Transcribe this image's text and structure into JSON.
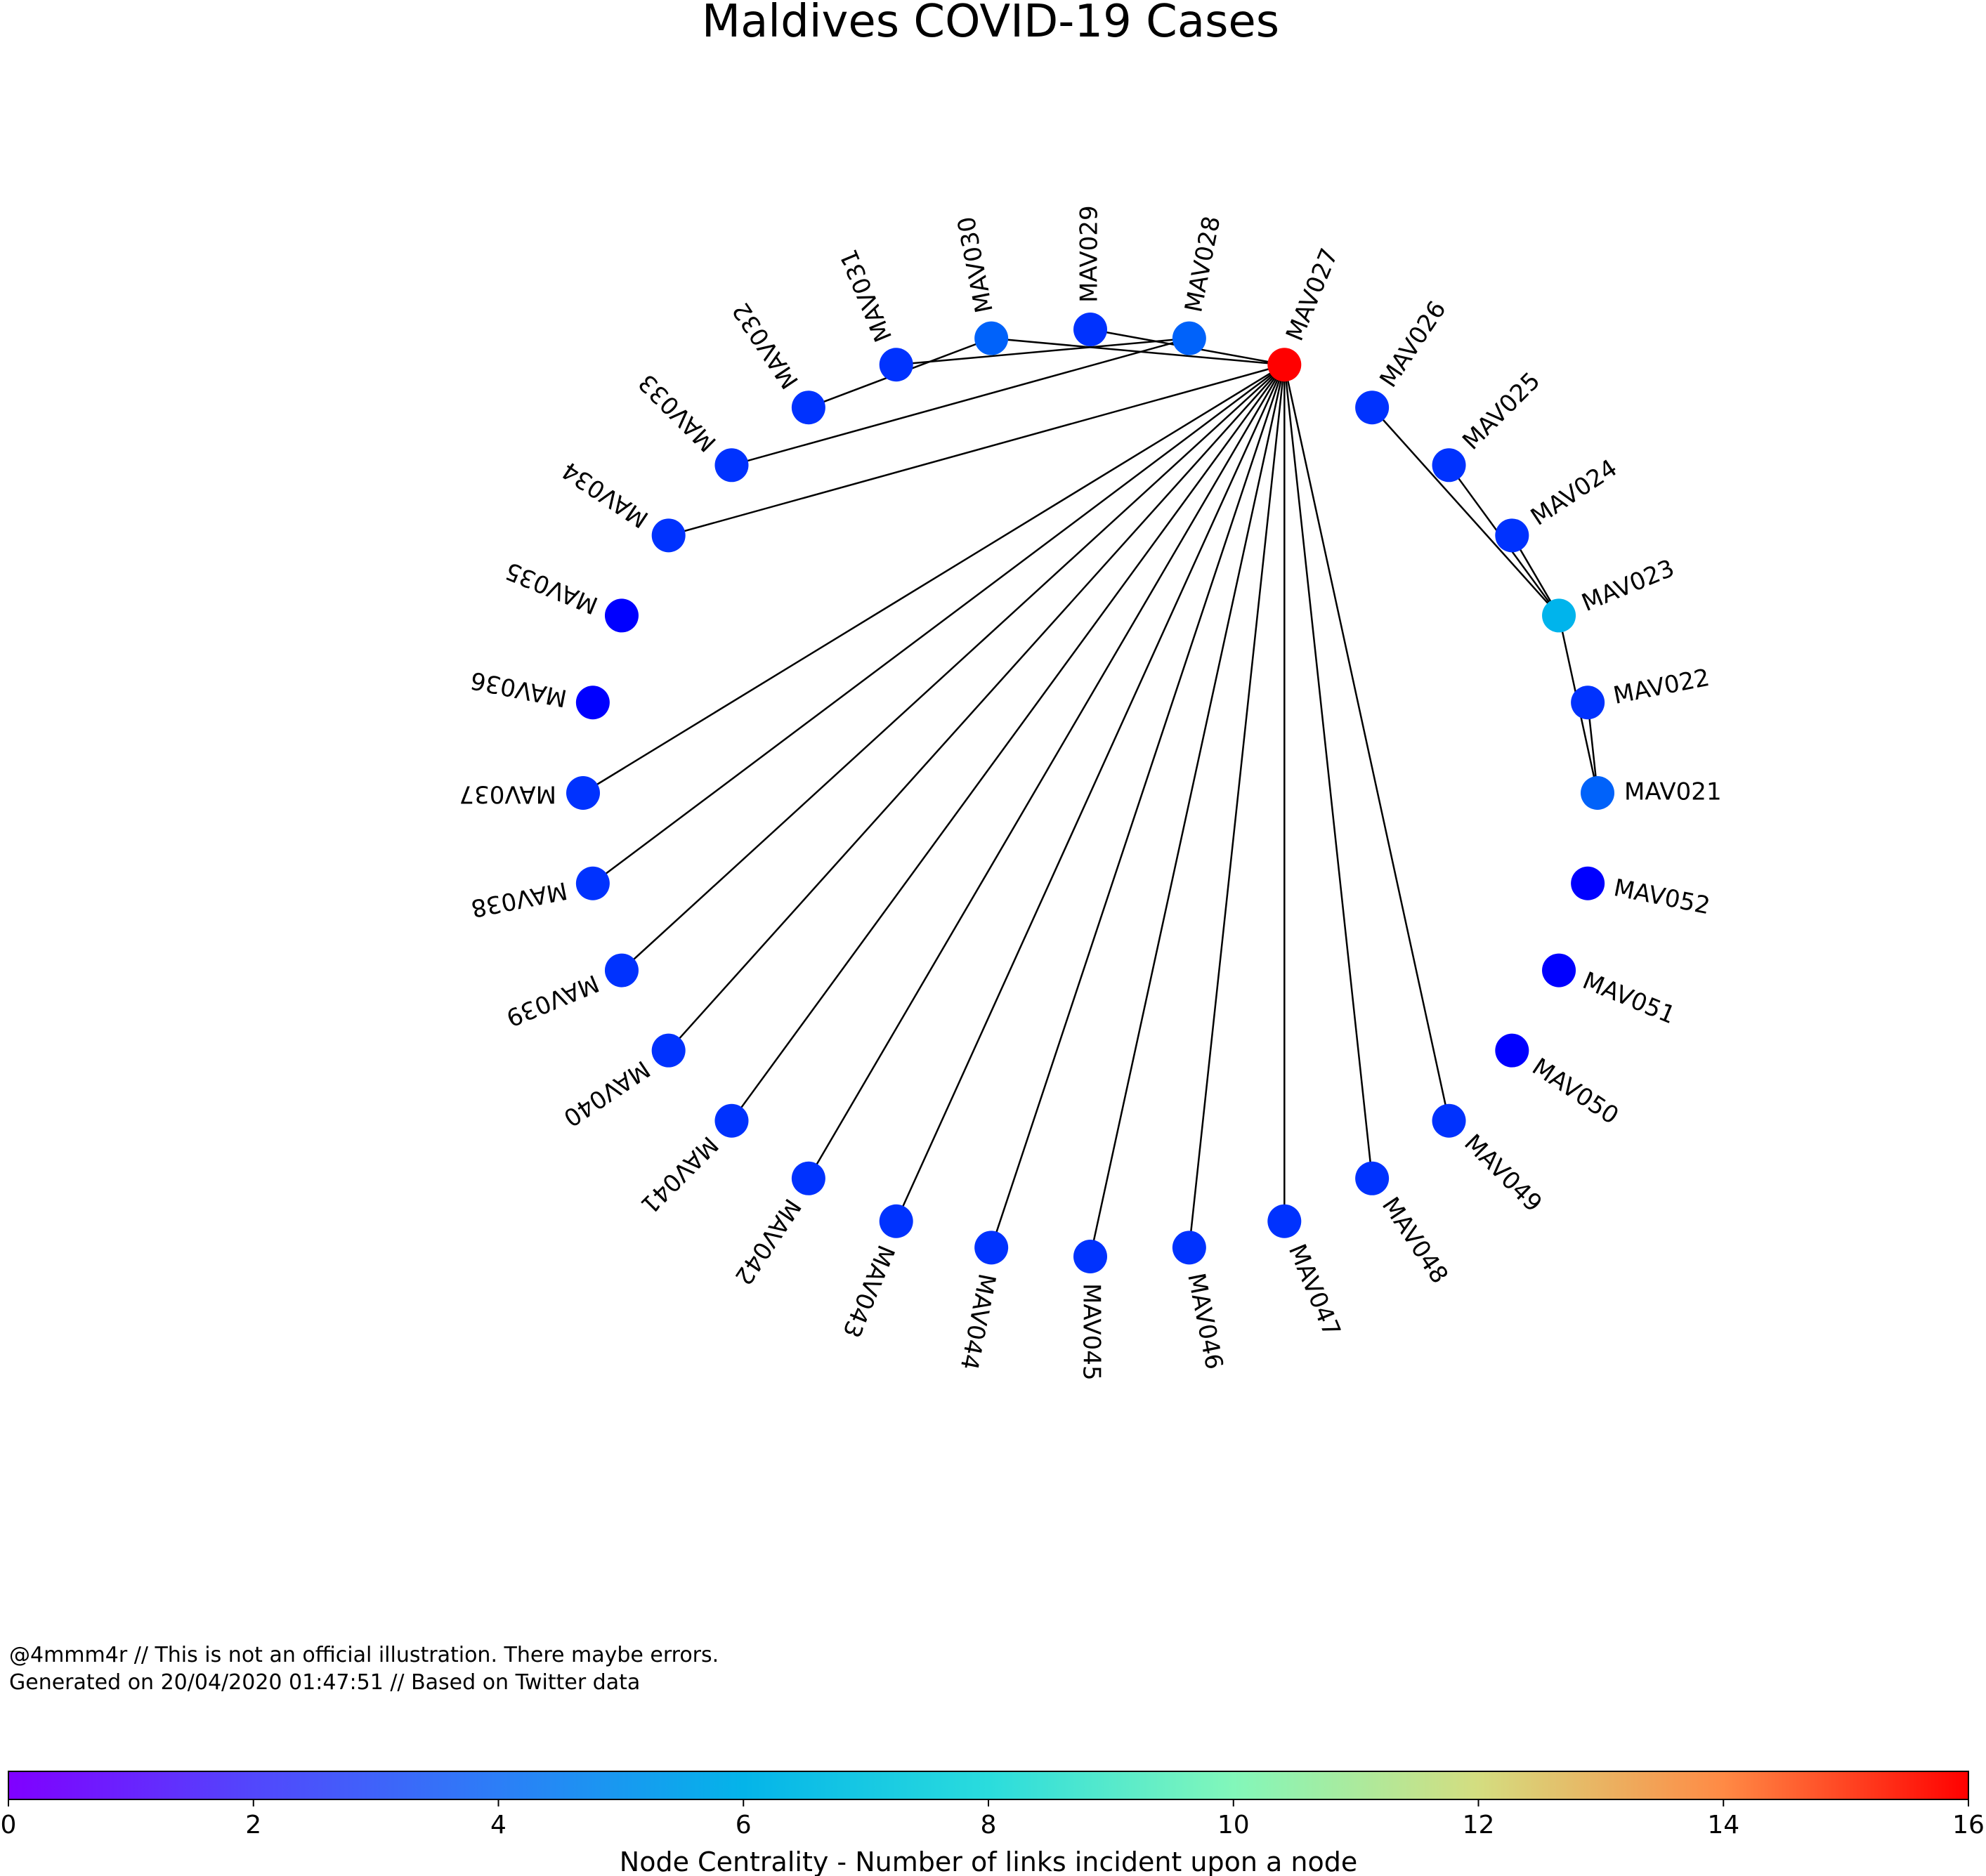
{
  "title": "Maldives COVID-19 Cases",
  "footer": {
    "line1": "@4mmm4r // This is not an official illustration. There maybe errors.",
    "line2": "Generated on 20/04/2020 01:47:51 // Based on Twitter data"
  },
  "colorbar": {
    "label": "Node Centrality - Number of links incident upon a node",
    "min": 0,
    "max": 16,
    "ticks": [
      "0",
      "2",
      "4",
      "6",
      "8",
      "10",
      "12",
      "14",
      "16"
    ]
  },
  "nodes": [
    {
      "id": "MAV021",
      "degree": 2
    },
    {
      "id": "MAV022",
      "degree": 1
    },
    {
      "id": "MAV023",
      "degree": 4
    },
    {
      "id": "MAV024",
      "degree": 1
    },
    {
      "id": "MAV025",
      "degree": 1
    },
    {
      "id": "MAV026",
      "degree": 1
    },
    {
      "id": "MAV027",
      "degree": 16
    },
    {
      "id": "MAV028",
      "degree": 2
    },
    {
      "id": "MAV029",
      "degree": 1
    },
    {
      "id": "MAV030",
      "degree": 2
    },
    {
      "id": "MAV031",
      "degree": 1
    },
    {
      "id": "MAV032",
      "degree": 1
    },
    {
      "id": "MAV033",
      "degree": 1
    },
    {
      "id": "MAV034",
      "degree": 1
    },
    {
      "id": "MAV035",
      "degree": 0
    },
    {
      "id": "MAV036",
      "degree": 0
    },
    {
      "id": "MAV037",
      "degree": 1
    },
    {
      "id": "MAV038",
      "degree": 1
    },
    {
      "id": "MAV039",
      "degree": 1
    },
    {
      "id": "MAV040",
      "degree": 1
    },
    {
      "id": "MAV041",
      "degree": 1
    },
    {
      "id": "MAV042",
      "degree": 1
    },
    {
      "id": "MAV043",
      "degree": 1
    },
    {
      "id": "MAV044",
      "degree": 1
    },
    {
      "id": "MAV045",
      "degree": 1
    },
    {
      "id": "MAV046",
      "degree": 1
    },
    {
      "id": "MAV047",
      "degree": 1
    },
    {
      "id": "MAV048",
      "degree": 1
    },
    {
      "id": "MAV049",
      "degree": 1
    },
    {
      "id": "MAV050",
      "degree": 0
    },
    {
      "id": "MAV051",
      "degree": 0
    },
    {
      "id": "MAV052",
      "degree": 0
    }
  ],
  "edges": [
    [
      "MAV021",
      "MAV022"
    ],
    [
      "MAV021",
      "MAV023"
    ],
    [
      "MAV023",
      "MAV024"
    ],
    [
      "MAV023",
      "MAV025"
    ],
    [
      "MAV023",
      "MAV026"
    ],
    [
      "MAV027",
      "MAV029"
    ],
    [
      "MAV027",
      "MAV030"
    ],
    [
      "MAV027",
      "MAV034"
    ],
    [
      "MAV027",
      "MAV037"
    ],
    [
      "MAV027",
      "MAV038"
    ],
    [
      "MAV027",
      "MAV039"
    ],
    [
      "MAV027",
      "MAV040"
    ],
    [
      "MAV027",
      "MAV041"
    ],
    [
      "MAV027",
      "MAV042"
    ],
    [
      "MAV027",
      "MAV043"
    ],
    [
      "MAV027",
      "MAV044"
    ],
    [
      "MAV027",
      "MAV045"
    ],
    [
      "MAV027",
      "MAV046"
    ],
    [
      "MAV027",
      "MAV047"
    ],
    [
      "MAV027",
      "MAV048"
    ],
    [
      "MAV027",
      "MAV049"
    ],
    [
      "MAV028",
      "MAV031"
    ],
    [
      "MAV028",
      "MAV033"
    ],
    [
      "MAV030",
      "MAV032"
    ]
  ]
}
